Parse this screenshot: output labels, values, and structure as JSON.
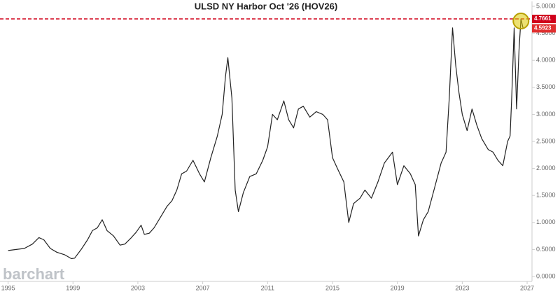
{
  "chart_data": {
    "type": "line",
    "title": "ULSD NY Harbor Oct '26 (HOV26)",
    "watermark": "barchart",
    "x": [
      1995.0,
      1995.5,
      1996.0,
      1996.5,
      1996.9,
      1997.2,
      1997.6,
      1998.0,
      1998.5,
      1998.9,
      1999.1,
      1999.5,
      1999.9,
      2000.2,
      2000.5,
      2000.8,
      2001.1,
      2001.5,
      2001.9,
      2002.2,
      2002.6,
      2002.9,
      2003.2,
      2003.4,
      2003.7,
      2004.0,
      2004.4,
      2004.8,
      2005.1,
      2005.4,
      2005.7,
      2006.0,
      2006.4,
      2006.8,
      2007.1,
      2007.5,
      2007.9,
      2008.2,
      2008.4,
      2008.55,
      2008.8,
      2009.0,
      2009.2,
      2009.5,
      2009.9,
      2010.3,
      2010.7,
      2011.0,
      2011.3,
      2011.6,
      2012.0,
      2012.3,
      2012.6,
      2012.9,
      2013.2,
      2013.6,
      2014.0,
      2014.4,
      2014.7,
      2015.0,
      2015.3,
      2015.7,
      2016.0,
      2016.3,
      2016.7,
      2017.0,
      2017.4,
      2017.8,
      2018.2,
      2018.7,
      2019.0,
      2019.4,
      2019.8,
      2020.1,
      2020.3,
      2020.6,
      2020.9,
      2021.3,
      2021.7,
      2022.0,
      2022.2,
      2022.4,
      2022.6,
      2022.8,
      2023.0,
      2023.3,
      2023.6,
      2023.9,
      2024.2,
      2024.6,
      2024.9,
      2025.2,
      2025.5,
      2025.8,
      2025.95,
      2026.05,
      2026.2,
      2026.35,
      2026.5,
      2026.62,
      2026.75
    ],
    "series": [
      {
        "name": "HOV26",
        "color": "#222222",
        "values": [
          0.48,
          0.5,
          0.52,
          0.6,
          0.72,
          0.68,
          0.52,
          0.45,
          0.4,
          0.33,
          0.34,
          0.5,
          0.68,
          0.85,
          0.9,
          1.05,
          0.85,
          0.75,
          0.58,
          0.6,
          0.72,
          0.82,
          0.95,
          0.78,
          0.8,
          0.9,
          1.1,
          1.3,
          1.4,
          1.6,
          1.9,
          1.95,
          2.15,
          1.9,
          1.75,
          2.2,
          2.6,
          3.0,
          3.7,
          4.05,
          3.3,
          1.6,
          1.2,
          1.55,
          1.85,
          1.9,
          2.15,
          2.4,
          3.0,
          2.9,
          3.25,
          2.9,
          2.75,
          3.1,
          3.15,
          2.95,
          3.05,
          3.0,
          2.9,
          2.2,
          2.0,
          1.75,
          1.0,
          1.35,
          1.45,
          1.6,
          1.45,
          1.75,
          2.1,
          2.3,
          1.7,
          2.05,
          1.9,
          1.7,
          0.75,
          1.05,
          1.2,
          1.65,
          2.1,
          2.3,
          3.3,
          4.6,
          3.9,
          3.4,
          3.0,
          2.7,
          3.1,
          2.8,
          2.55,
          2.35,
          2.3,
          2.15,
          2.05,
          2.5,
          2.6,
          3.3,
          4.6,
          3.1,
          4.2,
          4.7661,
          4.5923
        ]
      }
    ],
    "high_line": 4.7661,
    "last_value": 4.5923,
    "xlim": [
      1994.5,
      2027.3
    ],
    "ylim": [
      0,
      5
    ],
    "xticks": [
      1995,
      1999,
      2003,
      2007,
      2011,
      2015,
      2019,
      2023,
      2027
    ],
    "yticks": [
      {
        "value": 0,
        "label": "0.0000"
      },
      {
        "value": 0.5,
        "label": "0.5000"
      },
      {
        "value": 1,
        "label": "1.0000"
      },
      {
        "value": 1.5,
        "label": "1.5000"
      },
      {
        "value": 2,
        "label": "2.0000"
      },
      {
        "value": 2.5,
        "label": "2.5000"
      },
      {
        "value": 3,
        "label": "3.0000"
      },
      {
        "value": 3.5,
        "label": "3.5000"
      },
      {
        "value": 4,
        "label": "4.0000"
      },
      {
        "value": 4.5,
        "label": "4.5000"
      },
      {
        "value": 5,
        "label": "5.0000"
      }
    ],
    "grid": false
  }
}
